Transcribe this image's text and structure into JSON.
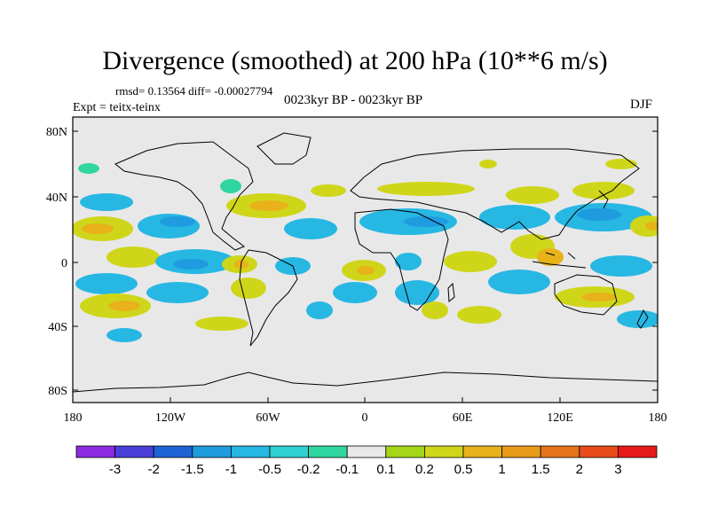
{
  "title": "Divergence (smoothed) at 200 hPa (10**6 m/s)",
  "stats": "rmsd= 0.13564 diff= -0.00027794",
  "expt": "Expt = teitx-teinx",
  "period": "0023kyr BP - 0023kyr BP",
  "season": "DJF",
  "y_ticks": [
    "80N",
    "40N",
    "0",
    "40S",
    "80S"
  ],
  "x_ticks": [
    "180",
    "120W",
    "60W",
    "0",
    "60E",
    "120E",
    "180"
  ],
  "colorbar": {
    "colors": [
      "#8a2be2",
      "#4b3fd9",
      "#1e63d6",
      "#1f9be0",
      "#27b7e3",
      "#2fcfd2",
      "#30d6a0",
      "#e8e8e8",
      "#a6d61a",
      "#cfd61a",
      "#e8b21a",
      "#e89a1a",
      "#e6741c",
      "#e84a1c",
      "#e61a1a"
    ],
    "labels": [
      "-3",
      "-2",
      "-1.5",
      "-1",
      "-0.5",
      "-0.2",
      "-0.1",
      "0.1",
      "0.2",
      "0.5",
      "1",
      "1.5",
      "2",
      "3"
    ]
  },
  "colors": {
    "background": "#e8e8e8"
  }
}
